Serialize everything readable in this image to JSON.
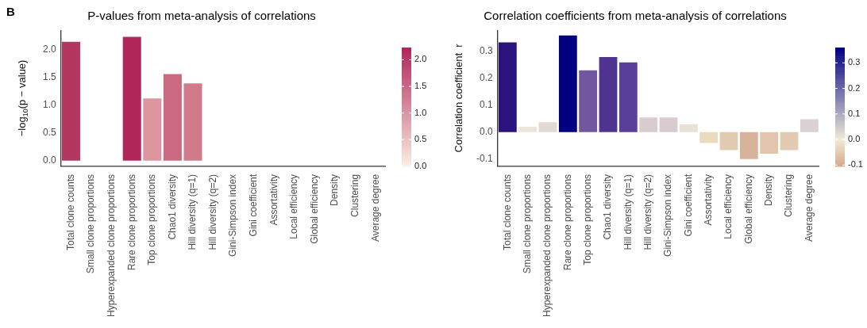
{
  "chart_data": [
    {
      "type": "bar",
      "title": "P-values from meta-analysis of correlations",
      "ylabel": "−log$_{10}$(p − value)",
      "annotations": [
        "B"
      ],
      "categories": [
        "Total clone counts",
        "Small clone proportions",
        "Hyperexpanded clone proportions",
        "Rare clone proportions",
        "Top clone proportions",
        "Chao1 diversity",
        "Hill diversity (q=1)",
        "Hill diversity (q=2)",
        "Gini-Simpson index",
        "Gini coefficient",
        "Assortativity",
        "Local efficiency",
        "Global efficiency",
        "Density",
        "Clustering",
        "Average degree"
      ],
      "values": [
        2.14,
        null,
        null,
        2.23,
        1.12,
        1.56,
        1.39,
        null,
        null,
        null,
        null,
        null,
        null,
        null,
        null,
        null
      ],
      "colors": [
        "#b3375f",
        "#ffffff",
        "#ffffff",
        "#b0285a",
        "#dd959f",
        "#c96a80",
        "#d07a8a",
        "#ffffff",
        "#ffffff",
        "#ffffff",
        "#ffffff",
        "#ffffff",
        "#ffffff",
        "#ffffff",
        "#ffffff",
        "#ffffff"
      ],
      "ylim": [
        -0.1,
        2.35
      ],
      "yticks": [
        {
          "value": 0,
          "label": "0.0"
        },
        {
          "value": 0.5,
          "label": "0.5"
        },
        {
          "value": 1,
          "label": "1.0"
        },
        {
          "value": 1.5,
          "label": "1.5"
        },
        {
          "value": 2,
          "label": "2.0"
        }
      ],
      "clim": [
        0,
        2.23
      ],
      "cticks": [
        {
          "value": 0,
          "label": "0.0"
        },
        {
          "value": 0.5,
          "label": "0.5"
        },
        {
          "value": 1,
          "label": "1.0"
        },
        {
          "value": 1.5,
          "label": "1.5"
        },
        {
          "value": 2,
          "label": "2.0"
        }
      ]
    },
    {
      "type": "bar",
      "title": "Correlation coefficients from meta-analysis of correlations",
      "ylabel": "Correlation coefficient  r",
      "categories": [
        "Total clone counts",
        "Small clone proportions",
        "Hyperexpanded clone proportions",
        "Rare clone proportions",
        "Top clone proportions",
        "Chao1 diversity",
        "Hill diversity (q=1)",
        "Hill diversity (q=2)",
        "Gini-Simpson index",
        "Gini coefficient",
        "Assortativity",
        "Local efficiency",
        "Global efficiency",
        "Density",
        "Clustering",
        "Average degree"
      ],
      "values": [
        0.334,
        0.02,
        0.037,
        0.36,
        0.23,
        0.28,
        0.26,
        0.055,
        0.055,
        0.03,
        -0.04,
        -0.067,
        -0.1,
        -0.08,
        -0.067,
        0.048
      ],
      "colors": [
        "#2b137d",
        "#ebe6d8",
        "#e2d9d4",
        "#000080",
        "#7356a0",
        "#4e3490",
        "#5a3f98",
        "#d8ccd0",
        "#d8ccd0",
        "#e8e1d6",
        "#eadbbf",
        "#e3cbb1",
        "#d8b39b",
        "#e1c5ac",
        "#e3cbb1",
        "#dbd0d3"
      ],
      "ylim": [
        -0.127,
        0.38
      ],
      "yticks": [
        -0.1,
        {
          "value": 0,
          "label": "0.0"
        },
        0.1,
        0.2,
        0.3
      ],
      "clim": [
        -0.105,
        0.36
      ],
      "cticks": [
        -0.1,
        {
          "value": 0,
          "label": "0.0"
        },
        0.1,
        0.2,
        0.3
      ]
    }
  ]
}
